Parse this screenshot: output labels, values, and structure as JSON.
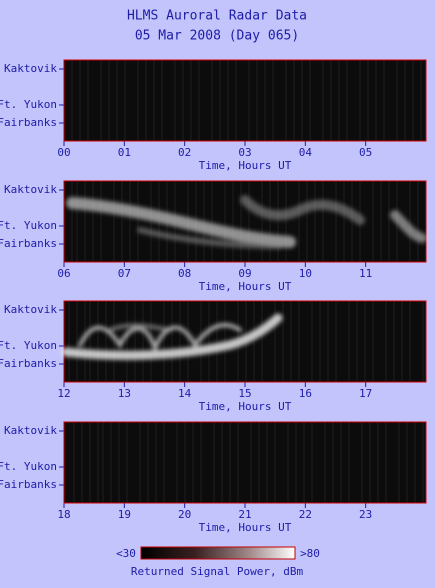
{
  "title": "HLMS Auroral Radar Data",
  "subtitle": "05 Mar 2008 (Day 065)",
  "chart_data": [
    {
      "type": "heatmap",
      "x_label": "Time, Hours UT",
      "xlim": [
        0,
        6
      ],
      "xticks": [
        {
          "value": 0,
          "label": "00"
        },
        {
          "value": 1,
          "label": "01"
        },
        {
          "value": 2,
          "label": "02"
        },
        {
          "value": 3,
          "label": "03"
        },
        {
          "value": 4,
          "label": "04"
        },
        {
          "value": 5,
          "label": "05"
        }
      ],
      "y_categories": [
        "Kaktovik",
        "Ft. Yukon",
        "Fairbanks"
      ]
    },
    {
      "type": "heatmap",
      "x_label": "Time, Hours UT",
      "xlim": [
        6,
        12
      ],
      "xticks": [
        {
          "value": 6,
          "label": "06"
        },
        {
          "value": 7,
          "label": "07"
        },
        {
          "value": 8,
          "label": "08"
        },
        {
          "value": 9,
          "label": "09"
        },
        10,
        11
      ],
      "y_categories": [
        "Kaktovik",
        "Ft. Yukon",
        "Fairbanks"
      ]
    },
    {
      "type": "heatmap",
      "x_label": "Time, Hours UT",
      "xlim": [
        12,
        18
      ],
      "xticks": [
        12,
        13,
        14,
        15,
        16,
        17
      ],
      "y_categories": [
        "Kaktovik",
        "Ft. Yukon",
        "Fairbanks"
      ]
    },
    {
      "type": "heatmap",
      "x_label": "Time, Hours UT",
      "xlim": [
        18,
        24
      ],
      "xticks": [
        18,
        19,
        20,
        21,
        22,
        23
      ],
      "y_categories": [
        "Kaktovik",
        "Ft. Yukon",
        "Fairbanks"
      ]
    }
  ],
  "colorbar": {
    "min_label": "<30",
    "max_label": ">80",
    "label": "Returned Signal Power, dBm"
  }
}
